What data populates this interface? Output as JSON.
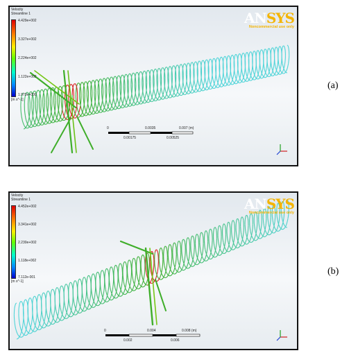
{
  "panels": [
    {
      "label": "(a)",
      "legend_title": "Velocity",
      "legend_subtitle": "Streamline 1",
      "ticks": [
        "4.429e+002",
        "3.327e+002",
        "2.224e+002",
        "1.122e+002",
        "1.972e+000"
      ],
      "unit": "[m s^-1]",
      "scale_top": [
        "0",
        "0.0035",
        "0.007  (m)"
      ],
      "scale_bottom": [
        "0.00175",
        "0.00525"
      ]
    },
    {
      "label": "(b)",
      "legend_title": "Velocity",
      "legend_subtitle": "Streamline 1",
      "ticks": [
        "4.452e+002",
        "3.341e+002",
        "2.230e+002",
        "1.118e+002",
        "7.112e-001"
      ],
      "unit": "[m s^-1]",
      "scale_top": [
        "0",
        "0.004",
        "0.008  (m)"
      ],
      "scale_bottom": [
        "0.002",
        "0.006"
      ]
    }
  ],
  "logo": {
    "brand_a": "AN",
    "brand_b": "SYS",
    "subtitle": "Noncommercial use only"
  },
  "colors": {
    "helix_green": "#3fae2a",
    "helix_cyan": "#4fd4d8",
    "hot": "#d82020"
  }
}
